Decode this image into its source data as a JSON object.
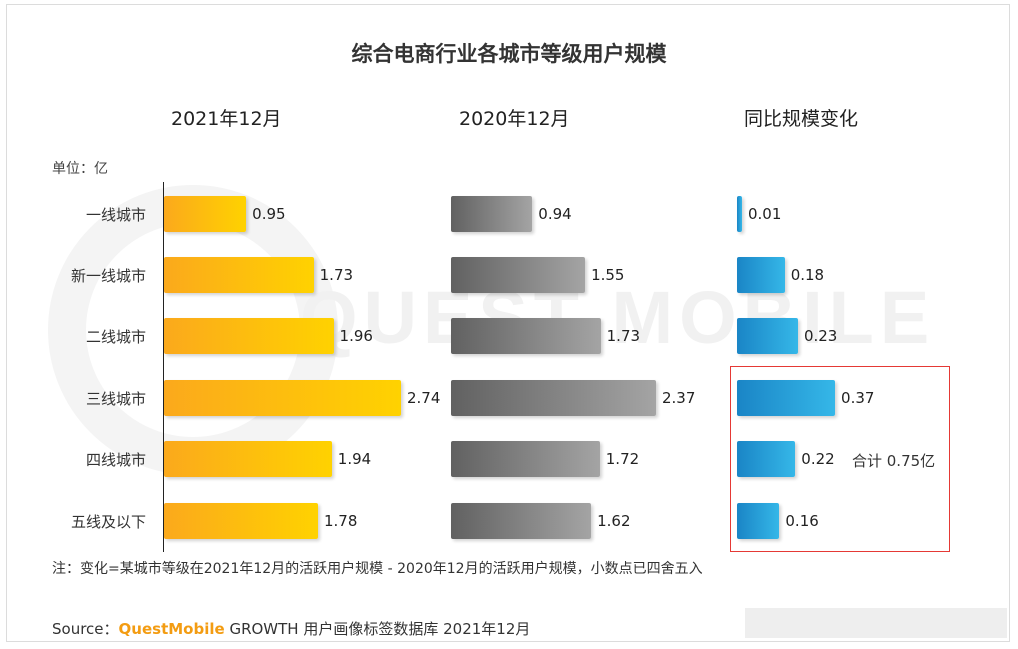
{
  "title": "综合电商行业各城市等级用户规模",
  "unit": "单位：亿",
  "columns": [
    "2021年12月",
    "2020年12月",
    "同比规模变化"
  ],
  "annotation": "合计 0.75亿",
  "note": "注：变化=某城市等级在2021年12月的活跃用户规模 - 2020年12月的活跃用户规模，小数点已四舍五入",
  "source": {
    "prefix": "Source：",
    "brand": "QuestMobile",
    "suffix": " GROWTH 用户画像标签数据库 2021年12月"
  },
  "watermark": "QUEST MOBILE",
  "chart_data": {
    "type": "bar",
    "orientation": "horizontal",
    "title": "综合电商行业各城市等级用户规模",
    "unit": "亿",
    "categories": [
      "一线城市",
      "新一线城市",
      "二线城市",
      "三线城市",
      "四线城市",
      "五线及以下"
    ],
    "series": [
      {
        "name": "2021年12月",
        "color": "#ffc107",
        "values": [
          0.95,
          1.73,
          1.96,
          2.74,
          1.94,
          1.78
        ]
      },
      {
        "name": "2020年12月",
        "color": "#808080",
        "values": [
          0.94,
          1.55,
          1.73,
          2.37,
          1.72,
          1.62
        ]
      },
      {
        "name": "同比规模变化",
        "color": "#2196d4",
        "values": [
          0.01,
          0.18,
          0.23,
          0.37,
          0.22,
          0.16
        ]
      }
    ],
    "highlight": {
      "categories": [
        "三线城市",
        "四线城市",
        "五线及以下"
      ],
      "label": "合计 0.75亿"
    }
  }
}
